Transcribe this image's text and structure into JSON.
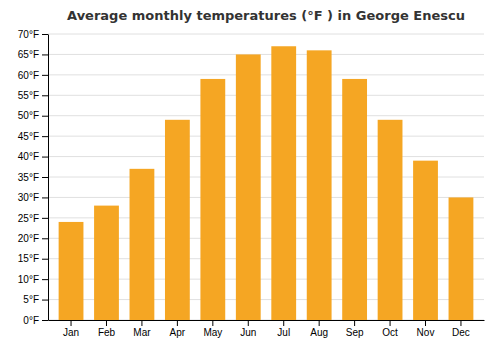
{
  "chart_data": {
    "type": "bar",
    "title": "Average monthly temperatures (°F ) in George Enescu",
    "categories": [
      "Jan",
      "Feb",
      "Mar",
      "Apr",
      "May",
      "Jun",
      "Jul",
      "Aug",
      "Sep",
      "Oct",
      "Nov",
      "Dec"
    ],
    "values": [
      24,
      28,
      37,
      49,
      59,
      65,
      67,
      66,
      59,
      49,
      39,
      30
    ],
    "color": "#F5A623",
    "ylim": [
      0,
      70
    ],
    "yticks": [
      {
        "value": 0,
        "label": "0°F"
      },
      {
        "value": 5,
        "label": "5°F"
      },
      {
        "value": 10,
        "label": "10°F"
      },
      {
        "value": 15,
        "label": "15°F"
      },
      {
        "value": 20,
        "label": "20°F"
      },
      {
        "value": 25,
        "label": "25°F"
      },
      {
        "value": 30,
        "label": "30°F"
      },
      {
        "value": 35,
        "label": "35°F"
      },
      {
        "value": 40,
        "label": "40°F"
      },
      {
        "value": 45,
        "label": "45°F"
      },
      {
        "value": 50,
        "label": "50°F"
      },
      {
        "value": 55,
        "label": "55°F"
      },
      {
        "value": 60,
        "label": "60°F"
      },
      {
        "value": 65,
        "label": "65°F"
      },
      {
        "value": 70,
        "label": "70°F"
      }
    ],
    "grid": true
  }
}
